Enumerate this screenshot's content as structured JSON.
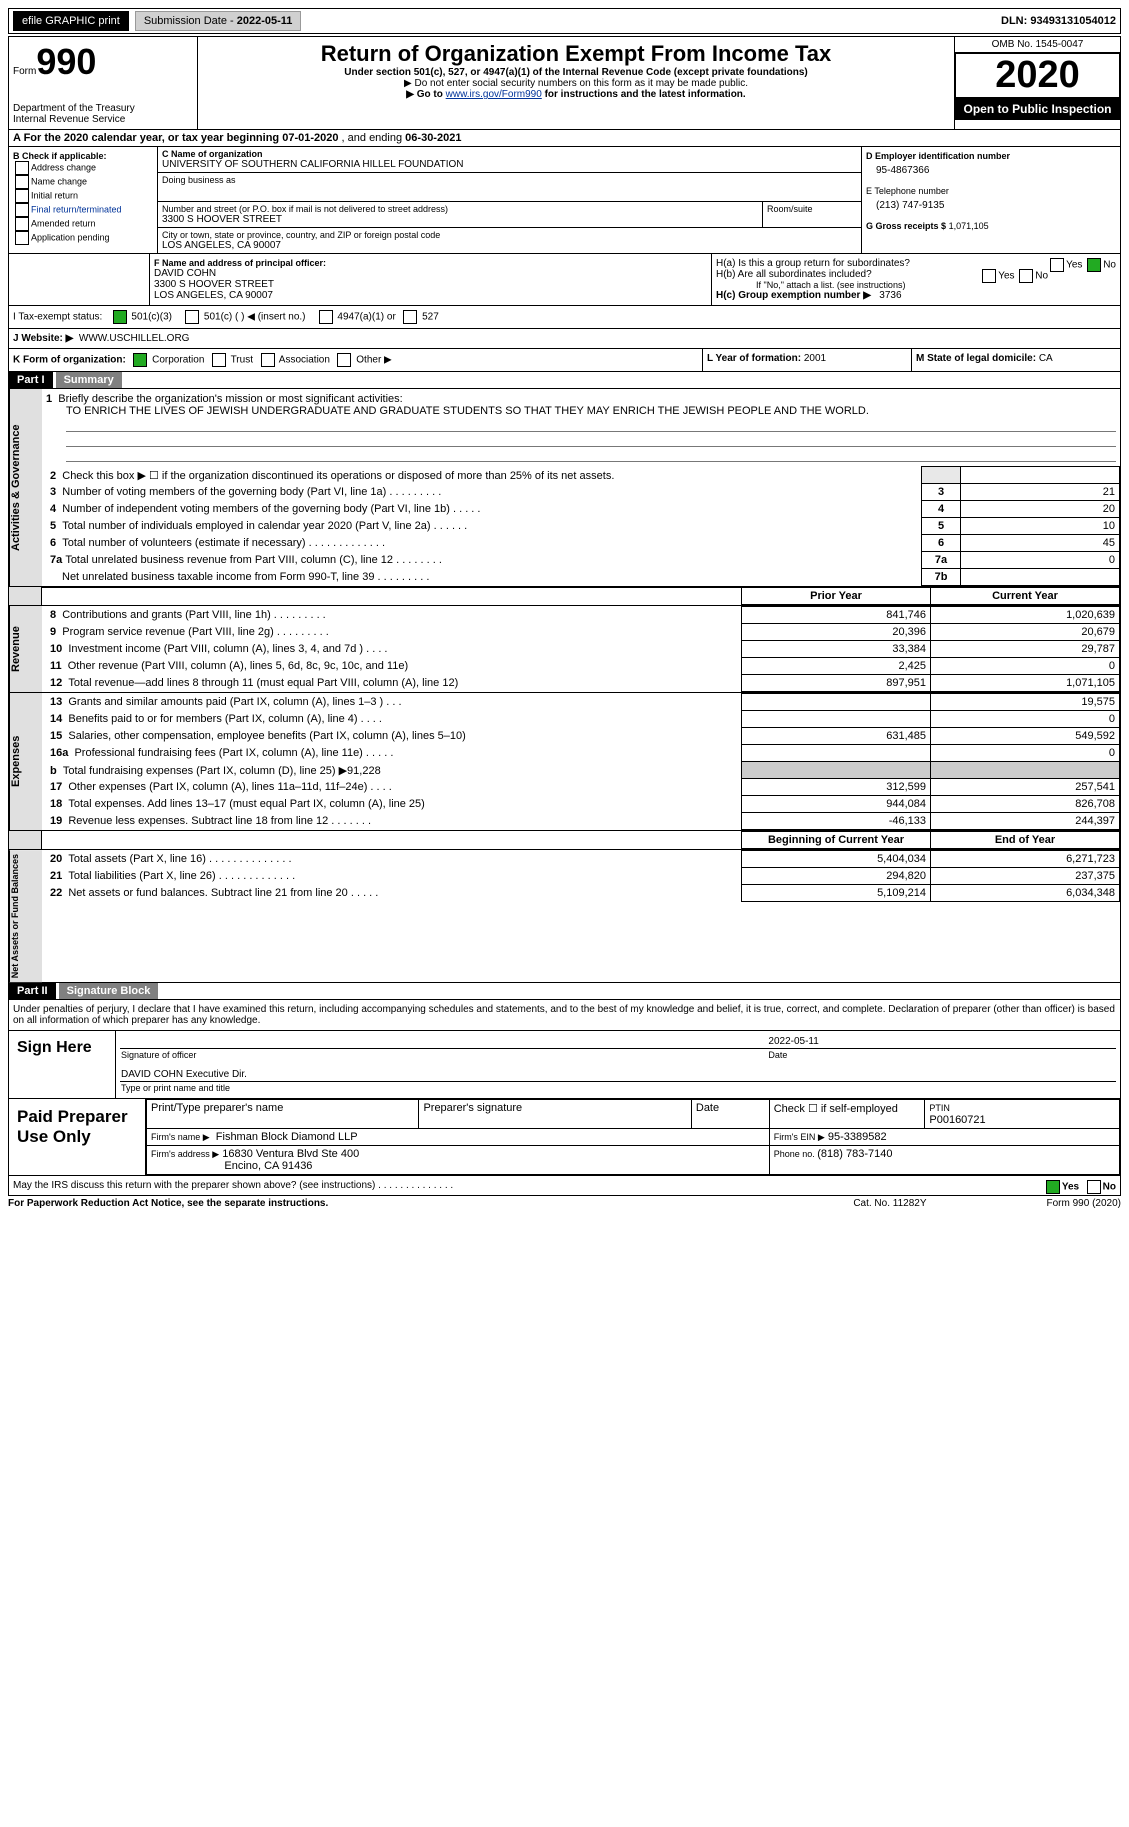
{
  "top": {
    "efile": "efile GRAPHIC print",
    "submission_label": "Submission Date - ",
    "submission_date": "2022-05-11",
    "dln_label": "DLN: ",
    "dln": "93493131054012"
  },
  "header": {
    "form_label": "Form",
    "form_number": "990",
    "dept": "Department of the Treasury",
    "irs": "Internal Revenue Service",
    "title": "Return of Organization Exempt From Income Tax",
    "subtitle": "Under section 501(c), 527, or 4947(a)(1) of the Internal Revenue Code (except private foundations)",
    "note1": "▶ Do not enter social security numbers on this form as it may be made public.",
    "note2_pre": "▶ Go to ",
    "note2_link": "www.irs.gov/Form990",
    "note2_post": " for instructions and the latest information.",
    "omb_label": "OMB No. 1545-0047",
    "year": "2020",
    "open": "Open to Public Inspection"
  },
  "period": {
    "line_a_pre": "A For the 2020 calendar year, or tax year beginning ",
    "start": "07-01-2020",
    "mid": " , and ending ",
    "end": "06-30-2021"
  },
  "boxB": {
    "title": "B Check if applicable:",
    "items": [
      "Address change",
      "Name change",
      "Initial return",
      "Final return/terminated",
      "Amended return",
      "Application pending"
    ]
  },
  "boxC": {
    "name_label": "C Name of organization",
    "name": "UNIVERSITY OF SOUTHERN CALIFORNIA HILLEL FOUNDATION",
    "dba_label": "Doing business as",
    "street_label": "Number and street (or P.O. box if mail is not delivered to street address)",
    "room_label": "Room/suite",
    "street": "3300 S HOOVER STREET",
    "city_label": "City or town, state or province, country, and ZIP or foreign postal code",
    "city": "LOS ANGELES, CA  90007"
  },
  "boxD": {
    "label": "D Employer identification number",
    "value": "95-4867366"
  },
  "boxE": {
    "label": "E Telephone number",
    "value": "(213) 747-9135"
  },
  "boxG": {
    "label": "G Gross receipts $",
    "value": "1,071,105"
  },
  "boxF": {
    "label": "F Name and address of principal officer:",
    "name": "DAVID COHN",
    "street": "3300 S HOOVER STREET",
    "city": "LOS ANGELES, CA  90007"
  },
  "boxH": {
    "ha": "H(a)  Is this a group return for subordinates?",
    "hb": "H(b)  Are all subordinates included?",
    "hb_note": "If \"No,\" attach a list. (see instructions)",
    "hc_label": "H(c)  Group exemption number ▶",
    "hc_val": "3736",
    "yes": "Yes",
    "no": "No"
  },
  "boxI": {
    "label": "I    Tax-exempt status:",
    "o1": "501(c)(3)",
    "o2": "501(c) (  ) ◀ (insert no.)",
    "o3": "4947(a)(1) or",
    "o4": "527"
  },
  "boxJ": {
    "label": "J   Website: ▶",
    "value": "WWW.USCHILLEL.ORG"
  },
  "boxK": {
    "label": "K Form of organization:",
    "corp": "Corporation",
    "trust": "Trust",
    "assoc": "Association",
    "other": "Other ▶"
  },
  "boxL": {
    "label": "L Year of formation: ",
    "value": "2001"
  },
  "boxM": {
    "label": "M State of legal domicile: ",
    "value": "CA"
  },
  "part1": {
    "tab": "Part I",
    "title": "Summary"
  },
  "summary": {
    "l1_label": "Briefly describe the organization's mission or most significant activities:",
    "l1_text": "TO ENRICH THE LIVES OF JEWISH UNDERGRADUATE AND GRADUATE STUDENTS SO THAT THEY MAY ENRICH THE JEWISH PEOPLE AND THE WORLD.",
    "l2": "Check this box ▶ ☐  if the organization discontinued its operations or disposed of more than 25% of its net assets.",
    "l3": "Number of voting members of the governing body (Part VI, line 1a)   .    .    .    .    .    .    .    .    .",
    "l4": "Number of independent voting members of the governing body (Part VI, line 1b)   .    .    .    .    .",
    "l5": "Total number of individuals employed in calendar year 2020 (Part V, line 2a)   .    .    .    .    .    .",
    "l6": "Total number of volunteers (estimate if necessary)   .    .    .    .    .    .    .    .    .    .    .    .    .",
    "l7a": "Total unrelated business revenue from Part VIII, column (C), line 12   .    .    .    .    .    .    .    .",
    "l7b": "Net unrelated business taxable income from Form 990-T, line 39   .    .    .    .    .    .    .    .    .",
    "v3": "21",
    "v4": "20",
    "v5": "10",
    "v6": "45",
    "v7a": "0",
    "v7b": "",
    "col_prior": "Prior Year",
    "col_curr": "Current Year",
    "rows_rev": [
      {
        "n": "8",
        "t": "Contributions and grants (Part VIII, line 1h)   .    .    .    .    .    .    .    .    .",
        "p": "841,746",
        "c": "1,020,639"
      },
      {
        "n": "9",
        "t": "Program service revenue (Part VIII, line 2g)   .    .    .    .    .    .    .    .    .",
        "p": "20,396",
        "c": "20,679"
      },
      {
        "n": "10",
        "t": "Investment income (Part VIII, column (A), lines 3, 4, and 7d )   .    .    .    .",
        "p": "33,384",
        "c": "29,787"
      },
      {
        "n": "11",
        "t": "Other revenue (Part VIII, column (A), lines 5, 6d, 8c, 9c, 10c, and 11e)",
        "p": "2,425",
        "c": "0"
      },
      {
        "n": "12",
        "t": "Total revenue—add lines 8 through 11 (must equal Part VIII, column (A), line 12)",
        "p": "897,951",
        "c": "1,071,105"
      }
    ],
    "rows_exp": [
      {
        "n": "13",
        "t": "Grants and similar amounts paid (Part IX, column (A), lines 1–3 )   .    .    .",
        "p": "",
        "c": "19,575"
      },
      {
        "n": "14",
        "t": "Benefits paid to or for members (Part IX, column (A), line 4)   .    .    .    .",
        "p": "",
        "c": "0"
      },
      {
        "n": "15",
        "t": "Salaries, other compensation, employee benefits (Part IX, column (A), lines 5–10)",
        "p": "631,485",
        "c": "549,592"
      },
      {
        "n": "16a",
        "t": "Professional fundraising fees (Part IX, column (A), line 11e)   .    .    .    .    .",
        "p": "",
        "c": "0"
      },
      {
        "n": "b",
        "t": "Total fundraising expenses (Part IX, column (D), line 25) ▶91,228",
        "p": "▒",
        "c": "▒"
      },
      {
        "n": "17",
        "t": "Other expenses (Part IX, column (A), lines 11a–11d, 11f–24e)   .    .    .    .",
        "p": "312,599",
        "c": "257,541"
      },
      {
        "n": "18",
        "t": "Total expenses. Add lines 13–17 (must equal Part IX, column (A), line 25)",
        "p": "944,084",
        "c": "826,708"
      },
      {
        "n": "19",
        "t": "Revenue less expenses. Subtract line 18 from line 12   .    .    .    .    .    .    .",
        "p": "-46,133",
        "c": "244,397"
      }
    ],
    "col_beg": "Beginning of Current Year",
    "col_end": "End of Year",
    "rows_net": [
      {
        "n": "20",
        "t": "Total assets (Part X, line 16)   .    .    .    .    .    .    .    .    .    .    .    .    .    .",
        "p": "5,404,034",
        "c": "6,271,723"
      },
      {
        "n": "21",
        "t": "Total liabilities (Part X, line 26)   .    .    .    .    .    .    .    .    .    .    .    .    .",
        "p": "294,820",
        "c": "237,375"
      },
      {
        "n": "22",
        "t": "Net assets or fund balances. Subtract line 21 from line 20   .    .    .    .    .",
        "p": "5,109,214",
        "c": "6,034,348"
      }
    ]
  },
  "labels": {
    "activities": "Activities & Governance",
    "revenue": "Revenue",
    "expenses": "Expenses",
    "netassets": "Net Assets or Fund Balances"
  },
  "part2": {
    "tab": "Part II",
    "title": "Signature Block",
    "decl": "Under penalties of perjury, I declare that I have examined this return, including accompanying schedules and statements, and to the best of my knowledge and belief, it is true, correct, and complete. Declaration of preparer (other than officer) is based on all information of which preparer has any knowledge."
  },
  "sign": {
    "sign_here": "Sign Here",
    "sig_label": "Signature of officer",
    "date_label": "Date",
    "date": "2022-05-11",
    "name": "DAVID COHN  Executive Dir.",
    "name_label": "Type or print name and title"
  },
  "preparer": {
    "title": "Paid Preparer Use Only",
    "h1": "Print/Type preparer's name",
    "h2": "Preparer's signature",
    "h3": "Date",
    "h4": "Check ☐ if self-employed",
    "h5_label": "PTIN",
    "h5": "P00160721",
    "firm_label": "Firm's name    ▶",
    "firm": "Fishman Block Diamond LLP",
    "ein_label": "Firm's EIN ▶",
    "ein": "95-3389582",
    "addr_label": "Firm's address ▶",
    "addr1": "16830 Ventura Blvd Ste 400",
    "addr2": "Encino, CA  91436",
    "phone_label": "Phone no. ",
    "phone": "(818) 783-7140"
  },
  "footer": {
    "discuss": "May the IRS discuss this return with the preparer shown above? (see instructions)   .    .    .    .    .    .    .    .    .    .    .    .    .    .",
    "pra": "For Paperwork Reduction Act Notice, see the separate instructions.",
    "cat": "Cat. No. 11282Y",
    "form": "Form 990 (2020)",
    "yes": "Yes",
    "no": "No"
  }
}
